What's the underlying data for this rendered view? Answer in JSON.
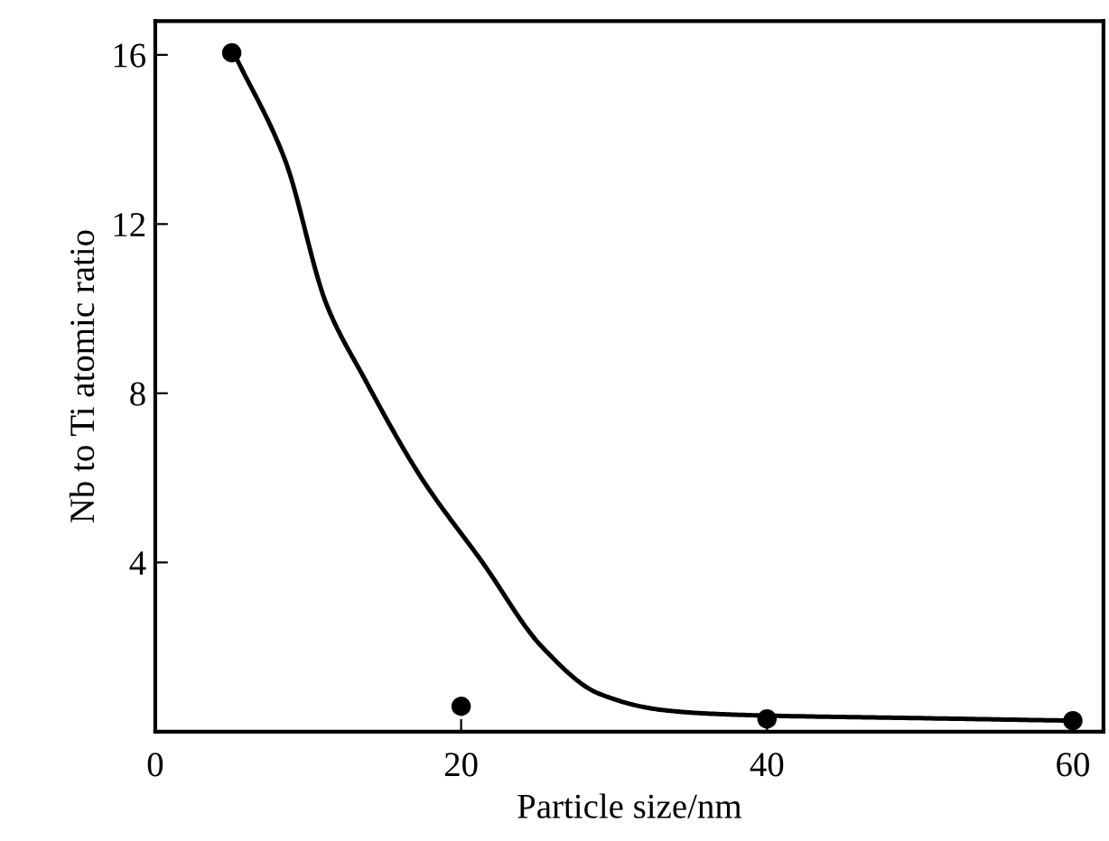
{
  "chart_data": {
    "type": "scatter",
    "xlabel": "Particle size/nm",
    "ylabel": "Nb to Ti atomic ratio",
    "xlim": [
      0,
      62
    ],
    "ylim": [
      0,
      16.8
    ],
    "xticks": [
      0,
      20,
      40,
      60
    ],
    "yticks": [
      {
        "value": 0,
        "label": null
      },
      4,
      8,
      12,
      16
    ],
    "grid": false,
    "legend": false,
    "series": [
      {
        "color": "#000000",
        "marker": "circle",
        "x": [
          5,
          20,
          40,
          60
        ],
        "values": [
          16.05,
          0.6,
          0.3,
          0.26
        ]
      },
      {
        "type": "line",
        "color": "#000000",
        "marker": "none",
        "line_style": "solid",
        "x": [
          5.2,
          8.5,
          11.2,
          13.6,
          17.4,
          21.4,
          25.3,
          29,
          33,
          36,
          40,
          50,
          60
        ],
        "values": [
          16,
          13.5,
          10.1,
          8.4,
          6.0,
          4.0,
          2.0,
          0.9,
          0.52,
          0.43,
          0.38,
          0.32,
          0.26
        ]
      }
    ]
  }
}
